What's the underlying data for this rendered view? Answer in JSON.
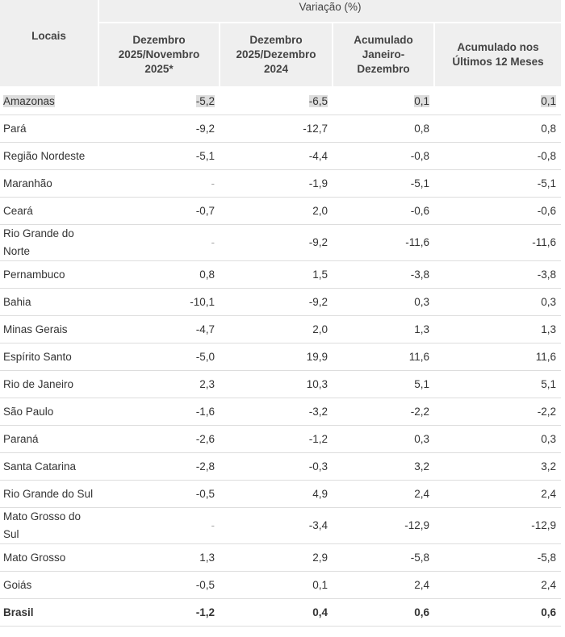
{
  "table": {
    "header": {
      "locais": "Locais",
      "group": "Variação (%)",
      "columns": [
        "Dezembro 2025/Novembro 2025*",
        "Dezembro 2025/Dezembro 2024",
        "Acumulado Janeiro-Dezembro",
        "Acumulado nos Últimos 12 Meses"
      ]
    },
    "rows": [
      [
        "Amazonas",
        "-5,2",
        "-6,5",
        "0,1",
        "0,1"
      ],
      [
        "Pará",
        "-9,2",
        "-12,7",
        "0,8",
        "0,8"
      ],
      [
        "Região Nordeste",
        "-5,1",
        "-4,4",
        "-0,8",
        "-0,8"
      ],
      [
        "Maranhão",
        "-",
        "-1,9",
        "-5,1",
        "-5,1"
      ],
      [
        "Ceará",
        "-0,7",
        "2,0",
        "-0,6",
        "-0,6"
      ],
      [
        "Rio Grande do Norte",
        "-",
        "-9,2",
        "-11,6",
        "-11,6"
      ],
      [
        "Pernambuco",
        "0,8",
        "1,5",
        "-3,8",
        "-3,8"
      ],
      [
        "Bahia",
        "-10,1",
        "-9,2",
        "0,3",
        "0,3"
      ],
      [
        "Minas Gerais",
        "-4,7",
        "2,0",
        "1,3",
        "1,3"
      ],
      [
        "Espírito Santo",
        "-5,0",
        "19,9",
        "11,6",
        "11,6"
      ],
      [
        "Rio de Janeiro",
        "2,3",
        "10,3",
        "5,1",
        "5,1"
      ],
      [
        "São Paulo",
        "-1,6",
        "-3,2",
        "-2,2",
        "-2,2"
      ],
      [
        "Paraná",
        "-2,6",
        "-1,2",
        "0,3",
        "0,3"
      ],
      [
        "Santa Catarina",
        "-2,8",
        "-0,3",
        "3,2",
        "3,2"
      ],
      [
        "Rio Grande do Sul",
        "-0,5",
        "4,9",
        "2,4",
        "2,4"
      ],
      [
        "Mato Grosso do Sul",
        "-",
        "-3,4",
        "-12,9",
        "-12,9"
      ],
      [
        "Mato Grosso",
        "1,3",
        "2,9",
        "-5,8",
        "-5,8"
      ],
      [
        "Goiás",
        "-0,5",
        "0,1",
        "2,4",
        "2,4"
      ],
      [
        "Brasil",
        "-1,2",
        "0,4",
        "0,6",
        "0,6"
      ]
    ]
  }
}
